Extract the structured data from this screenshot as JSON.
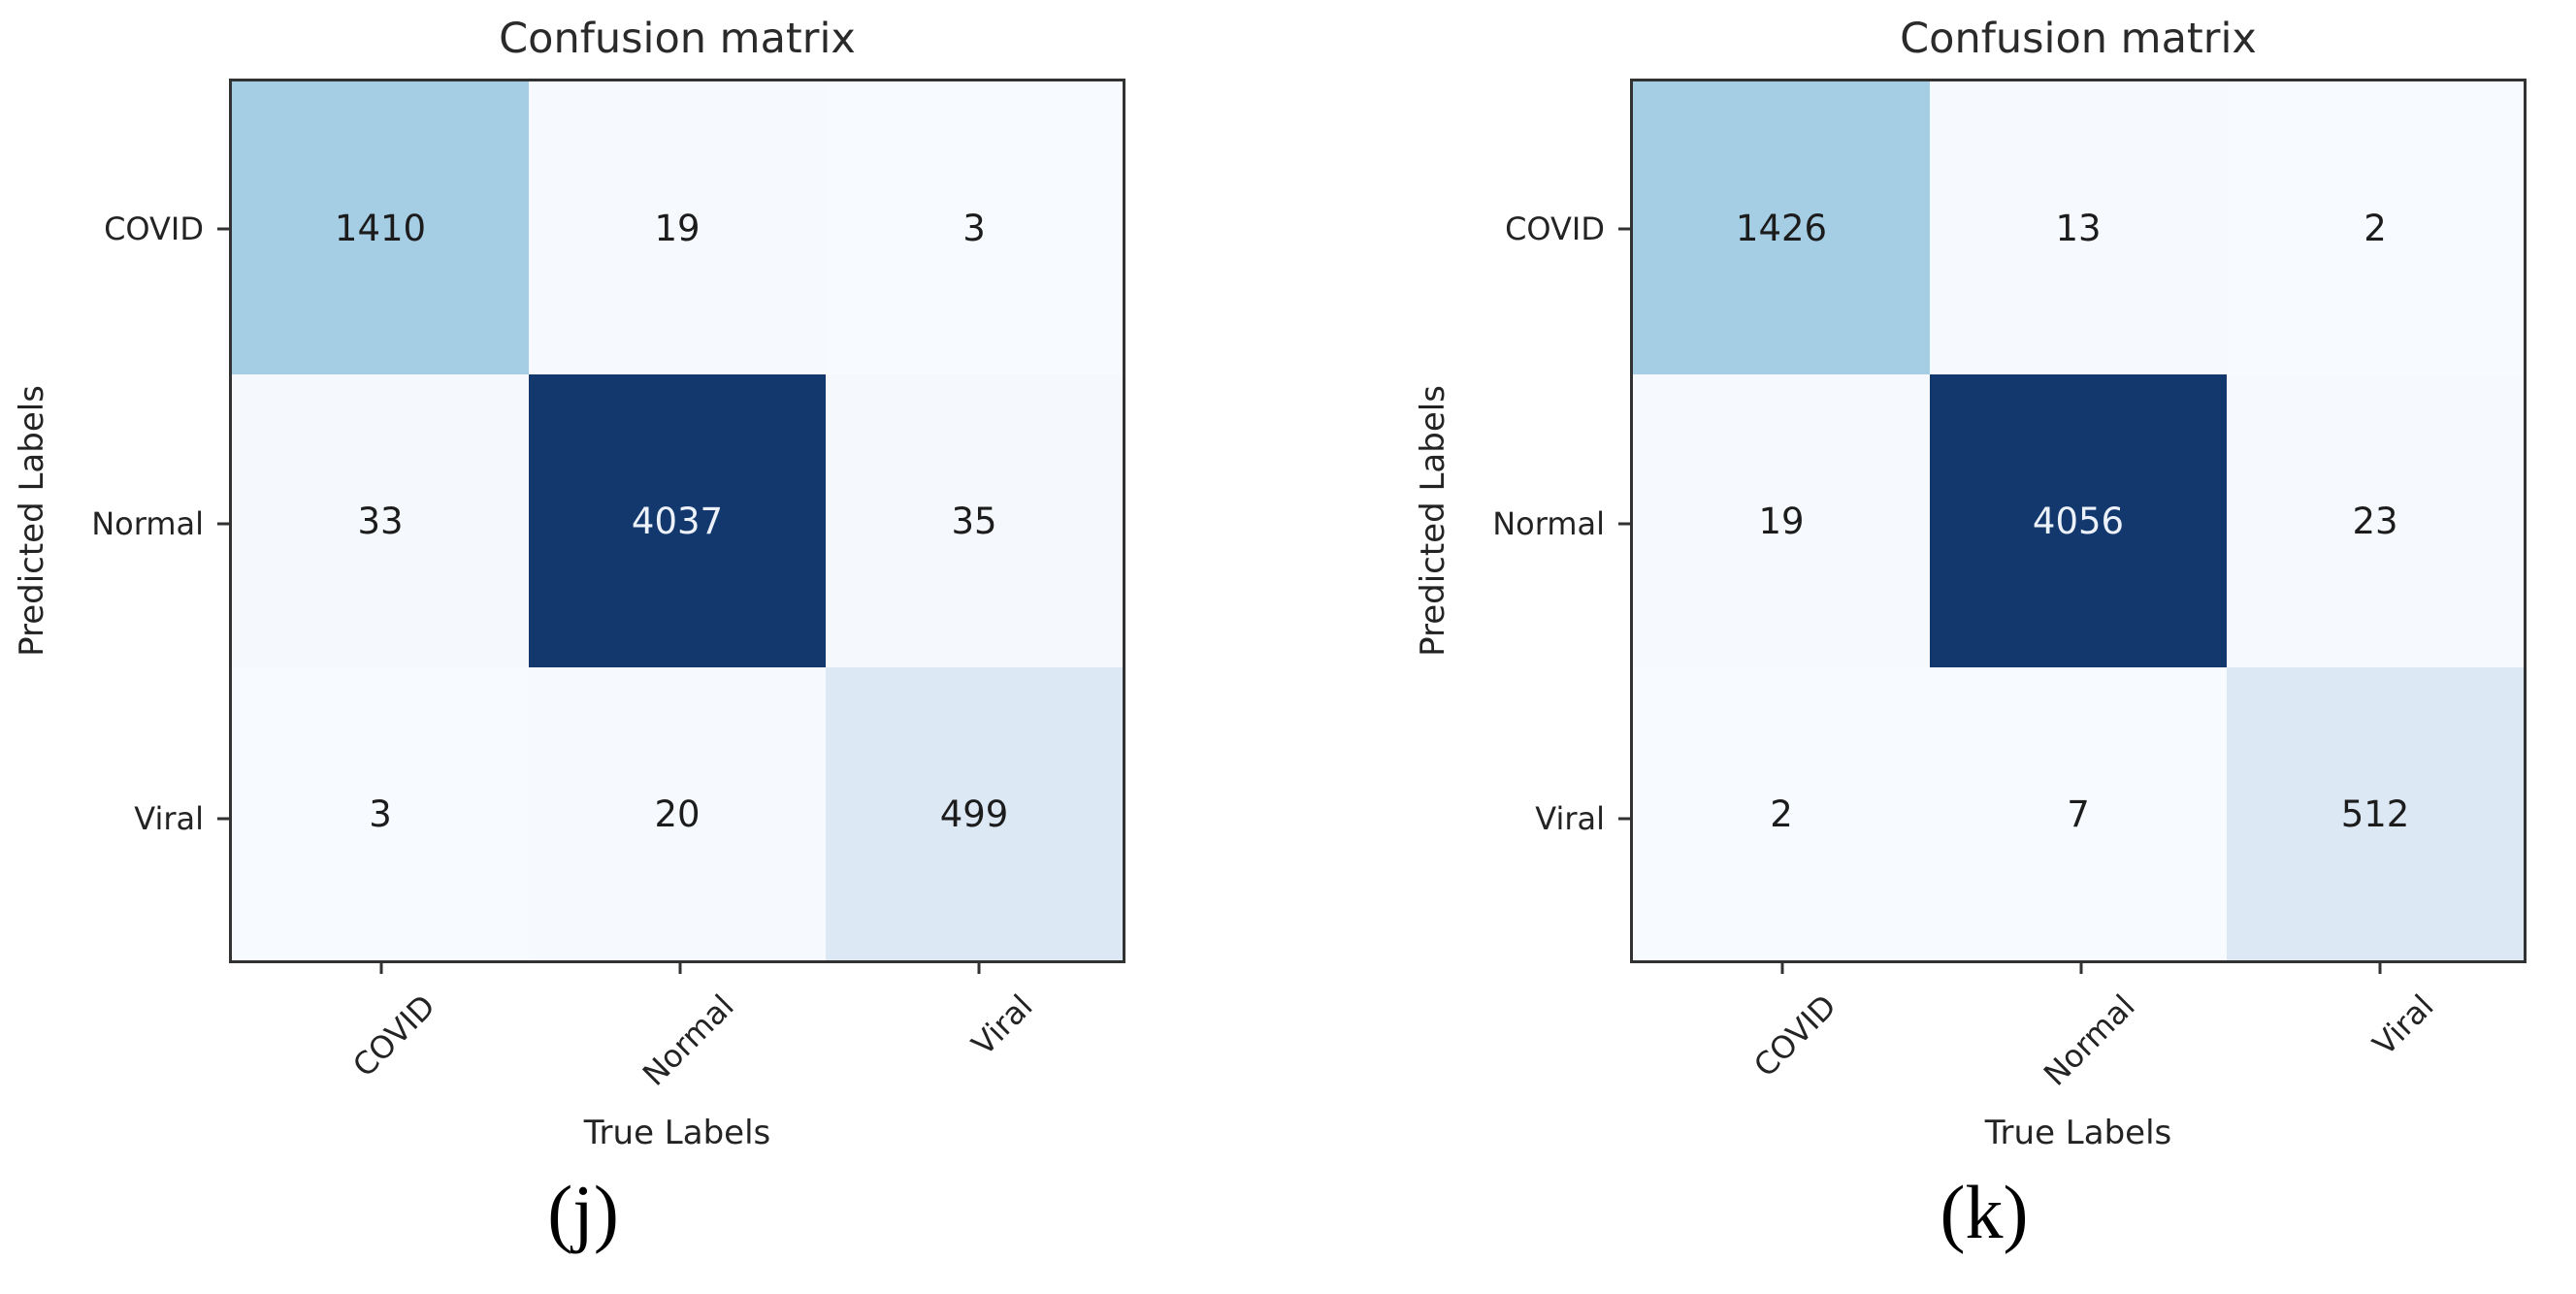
{
  "page": {
    "background_color": "#ffffff"
  },
  "chart_data": [
    {
      "type": "heatmap",
      "panel_label": "(j)",
      "title": "Confusion matrix",
      "xlabel": "True Labels",
      "ylabel": "Predicted Labels",
      "x_tick_labels": [
        "COVID",
        "Normal",
        "Viral"
      ],
      "y_tick_labels": [
        "COVID",
        "Normal",
        "Viral"
      ],
      "matrix": [
        [
          1410,
          19,
          3
        ],
        [
          33,
          4037,
          35
        ],
        [
          3,
          20,
          499
        ]
      ],
      "cell_colors": [
        [
          "#a5cde3",
          "#f6fafe",
          "#f7fbff"
        ],
        [
          "#f5f9fd",
          "#12386e",
          "#f5f9fd"
        ],
        [
          "#f7fbff",
          "#f6fafe",
          "#dce9f5"
        ]
      ],
      "colormap": "Blues",
      "colormap_min_color": "#f7fbff",
      "colormap_max_color": "#12386e",
      "legend": "none",
      "grid": false
    },
    {
      "type": "heatmap",
      "panel_label": "(k)",
      "title": "Confusion matrix",
      "xlabel": "True Labels",
      "ylabel": "Predicted Labels",
      "x_tick_labels": [
        "COVID",
        "Normal",
        "Viral"
      ],
      "y_tick_labels": [
        "COVID",
        "Normal",
        "Viral"
      ],
      "matrix": [
        [
          1426,
          13,
          2
        ],
        [
          19,
          4056,
          23
        ],
        [
          2,
          7,
          512
        ]
      ],
      "cell_colors": [
        [
          "#a5cde3",
          "#f6fafe",
          "#f7fbff"
        ],
        [
          "#f6fafe",
          "#12386e",
          "#f6fafe"
        ],
        [
          "#f7fbff",
          "#f7fbff",
          "#dce9f5"
        ]
      ],
      "colormap": "Blues",
      "colormap_min_color": "#f7fbff",
      "colormap_max_color": "#12386e",
      "legend": "none",
      "grid": false
    }
  ]
}
